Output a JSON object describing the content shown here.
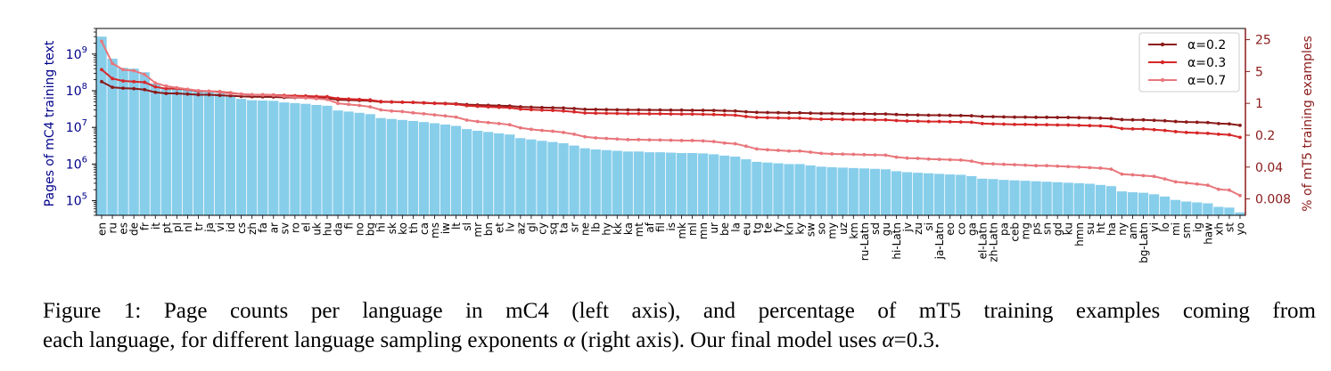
{
  "chart_data": {
    "type": "bar",
    "title": "",
    "categories": [
      "en",
      "ru",
      "es",
      "de",
      "fr",
      "it",
      "pt",
      "pl",
      "nl",
      "tr",
      "ja",
      "vi",
      "id",
      "cs",
      "zh",
      "fa",
      "ar",
      "sv",
      "ro",
      "el",
      "uk",
      "hu",
      "da",
      "fi",
      "no",
      "bg",
      "hi",
      "sk",
      "ko",
      "th",
      "ca",
      "ms",
      "iw",
      "lt",
      "sl",
      "mr",
      "bn",
      "et",
      "lv",
      "az",
      "gl",
      "cy",
      "sq",
      "ta",
      "sr",
      "ne",
      "lb",
      "hy",
      "kk",
      "ka",
      "mt",
      "af",
      "fil",
      "is",
      "mk",
      "ml",
      "mn",
      "ur",
      "be",
      "la",
      "eu",
      "tg",
      "te",
      "fy",
      "kn",
      "ky",
      "sw",
      "so",
      "my",
      "uz",
      "km",
      "ru-Latn",
      "sd",
      "gu",
      "hi-Latn",
      "jv",
      "zu",
      "si",
      "ja-Latn",
      "eo",
      "co",
      "ga",
      "el-Latn",
      "zh-Latn",
      "pa",
      "ceb",
      "mg",
      "ps",
      "sn",
      "gd",
      "ku",
      "hmn",
      "su",
      "ht",
      "ha",
      "ny",
      "am",
      "bg-Latn",
      "yi",
      "lo",
      "mi",
      "sm",
      "ig",
      "haw",
      "xh",
      "st",
      "yo"
    ],
    "left_axis": {
      "label": "Pages of mC4 training text",
      "scale": "log",
      "ticks": [
        100000,
        1000000,
        10000000,
        100000000,
        1000000000
      ],
      "tick_labels": [
        "10^5",
        "10^6",
        "10^7",
        "10^8",
        "10^9"
      ],
      "tick_label_parts": [
        [
          "10",
          "5"
        ],
        [
          "10",
          "6"
        ],
        [
          "10",
          "7"
        ],
        [
          "10",
          "8"
        ],
        [
          "10",
          "9"
        ]
      ],
      "ylim": [
        40000,
        5000000000
      ]
    },
    "right_axis": {
      "label": "% of mT5 training examples",
      "scale": "log",
      "ticks": [
        0.008,
        0.04,
        0.2,
        1,
        5,
        25
      ],
      "tick_labels": [
        "0.008",
        "0.04",
        "0.2",
        "1",
        "5",
        "25"
      ],
      "ylim": [
        0.0035,
        44
      ]
    },
    "bars": {
      "name": "mC4 pages",
      "color": "#87CEEB",
      "values": [
        3000000000,
        750000000,
        420000000,
        400000000,
        320000000,
        160000000,
        120000000,
        120000000,
        110000000,
        95000000,
        95000000,
        85000000,
        75000000,
        60000000,
        55000000,
        54000000,
        53000000,
        48000000,
        46000000,
        44000000,
        41000000,
        39000000,
        29000000,
        27000000,
        25000000,
        23000000,
        18000000,
        17000000,
        16000000,
        15000000,
        14000000,
        13000000,
        12000000,
        11000000,
        9000000,
        8100000,
        7500000,
        6900000,
        6400000,
        5100000,
        4700000,
        4300000,
        4000000,
        3700000,
        3200000,
        2700000,
        2500000,
        2400000,
        2300000,
        2200000,
        2200000,
        2100000,
        2100000,
        2050000,
        2000000,
        2000000,
        1950000,
        1850000,
        1700000,
        1600000,
        1350000,
        1150000,
        1100000,
        1050000,
        1000000,
        1000000,
        920000,
        850000,
        820000,
        800000,
        780000,
        760000,
        740000,
        720000,
        640000,
        600000,
        580000,
        560000,
        540000,
        520000,
        510000,
        470000,
        400000,
        390000,
        370000,
        360000,
        350000,
        340000,
        330000,
        320000,
        310000,
        300000,
        290000,
        270000,
        250000,
        180000,
        170000,
        165000,
        150000,
        130000,
        105000,
        95000,
        90000,
        85000,
        68000,
        65000,
        48000
      ]
    },
    "series": [
      {
        "name": "α=0.2",
        "color": "#8B1A1A",
        "values": [
          3.0,
          2.25,
          2.15,
          2.1,
          2.0,
          1.75,
          1.65,
          1.65,
          1.6,
          1.55,
          1.55,
          1.5,
          1.47,
          1.42,
          1.4,
          1.39,
          1.38,
          1.35,
          1.34,
          1.33,
          1.31,
          1.3,
          1.2,
          1.18,
          1.16,
          1.14,
          1.08,
          1.07,
          1.06,
          1.05,
          1.03,
          1.01,
          0.995,
          0.98,
          0.94,
          0.92,
          0.905,
          0.89,
          0.875,
          0.84,
          0.825,
          0.81,
          0.8,
          0.79,
          0.77,
          0.74,
          0.735,
          0.73,
          0.725,
          0.72,
          0.72,
          0.715,
          0.715,
          0.71,
          0.71,
          0.705,
          0.705,
          0.7,
          0.69,
          0.68,
          0.655,
          0.635,
          0.63,
          0.625,
          0.62,
          0.62,
          0.61,
          0.6,
          0.6,
          0.595,
          0.59,
          0.59,
          0.585,
          0.585,
          0.57,
          0.56,
          0.555,
          0.55,
          0.55,
          0.545,
          0.54,
          0.535,
          0.515,
          0.51,
          0.505,
          0.5,
          0.5,
          0.495,
          0.495,
          0.49,
          0.49,
          0.485,
          0.48,
          0.475,
          0.465,
          0.44,
          0.435,
          0.435,
          0.425,
          0.415,
          0.4,
          0.39,
          0.385,
          0.38,
          0.36,
          0.355,
          0.33
        ]
      },
      {
        "name": "α=0.3",
        "color": "#D62728",
        "values": [
          5.5,
          3.5,
          3.1,
          3.0,
          2.9,
          2.3,
          2.1,
          2.1,
          2.0,
          1.85,
          1.85,
          1.8,
          1.7,
          1.6,
          1.55,
          1.54,
          1.53,
          1.49,
          1.47,
          1.45,
          1.42,
          1.4,
          1.28,
          1.25,
          1.22,
          1.19,
          1.1,
          1.08,
          1.06,
          1.05,
          1.02,
          1.0,
          0.98,
          0.96,
          0.89,
          0.86,
          0.84,
          0.82,
          0.8,
          0.75,
          0.73,
          0.71,
          0.7,
          0.68,
          0.65,
          0.615,
          0.61,
          0.605,
          0.6,
          0.595,
          0.595,
          0.59,
          0.59,
          0.585,
          0.58,
          0.58,
          0.575,
          0.57,
          0.56,
          0.55,
          0.515,
          0.49,
          0.485,
          0.48,
          0.475,
          0.475,
          0.46,
          0.45,
          0.45,
          0.445,
          0.44,
          0.44,
          0.435,
          0.435,
          0.42,
          0.41,
          0.405,
          0.4,
          0.4,
          0.395,
          0.39,
          0.385,
          0.36,
          0.355,
          0.35,
          0.345,
          0.345,
          0.34,
          0.34,
          0.335,
          0.335,
          0.33,
          0.325,
          0.32,
          0.31,
          0.28,
          0.275,
          0.275,
          0.265,
          0.255,
          0.24,
          0.23,
          0.225,
          0.22,
          0.21,
          0.205,
          0.18
        ]
      },
      {
        "name": "α=0.7",
        "color": "#E8767B",
        "values": [
          23.0,
          7.5,
          5.5,
          5.2,
          4.3,
          2.8,
          2.4,
          2.2,
          2.05,
          1.9,
          1.85,
          1.75,
          1.65,
          1.6,
          1.55,
          1.52,
          1.5,
          1.42,
          1.37,
          1.32,
          1.27,
          1.22,
          1.0,
          0.95,
          0.9,
          0.84,
          0.72,
          0.68,
          0.66,
          0.62,
          0.59,
          0.56,
          0.53,
          0.5,
          0.43,
          0.4,
          0.38,
          0.36,
          0.34,
          0.29,
          0.27,
          0.255,
          0.245,
          0.23,
          0.21,
          0.185,
          0.175,
          0.17,
          0.165,
          0.16,
          0.16,
          0.158,
          0.157,
          0.155,
          0.153,
          0.153,
          0.15,
          0.145,
          0.135,
          0.13,
          0.115,
          0.1,
          0.096,
          0.093,
          0.09,
          0.09,
          0.085,
          0.08,
          0.078,
          0.077,
          0.076,
          0.075,
          0.074,
          0.073,
          0.066,
          0.063,
          0.062,
          0.06,
          0.059,
          0.058,
          0.057,
          0.054,
          0.048,
          0.047,
          0.046,
          0.045,
          0.044,
          0.043,
          0.043,
          0.042,
          0.041,
          0.04,
          0.039,
          0.038,
          0.036,
          0.028,
          0.027,
          0.026,
          0.025,
          0.022,
          0.019,
          0.018,
          0.017,
          0.016,
          0.013,
          0.0125,
          0.0095
        ]
      }
    ],
    "legend": {
      "position": "top-right",
      "entries": [
        "α=0.2",
        "α=0.3",
        "α=0.7"
      ]
    },
    "grid": false
  },
  "caption": {
    "line1": "Figure 1: Page counts per language in mC4 (left axis), and percentage of mT5 training examples coming from",
    "line2_before": "each language, for different language sampling exponents ",
    "alpha_symbol": "α",
    "line2_middle": " (right axis). Our final model uses ",
    "line2_end": "=0.3."
  },
  "colors": {
    "left_axis": "#00008B",
    "right_axis": "#8B1A1A"
  }
}
